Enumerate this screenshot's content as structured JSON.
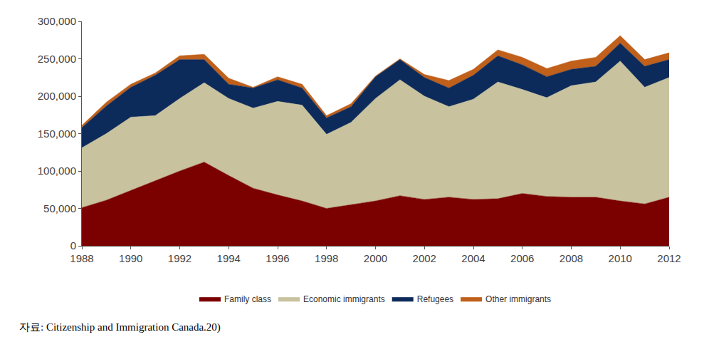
{
  "chart_data": {
    "type": "area",
    "stacked": true,
    "grid": false,
    "legend": "bottom",
    "x": [
      1988,
      1989,
      1990,
      1991,
      1992,
      1993,
      1994,
      1995,
      1996,
      1997,
      1998,
      1999,
      2000,
      2001,
      2002,
      2003,
      2004,
      2005,
      2006,
      2007,
      2008,
      2009,
      2010,
      2011,
      2012
    ],
    "xlim": [
      1988,
      2012
    ],
    "xticks": [
      1988,
      1990,
      1992,
      1994,
      1996,
      1998,
      2000,
      2002,
      2004,
      2006,
      2008,
      2010,
      2012
    ],
    "ylim": [
      0,
      300000
    ],
    "yticks": [
      0,
      {
        "value": 50000,
        "label": "50,000"
      },
      {
        "value": 100000,
        "label": "100,000"
      },
      {
        "value": 150000,
        "label": "150,000"
      },
      {
        "value": 200000,
        "label": "200,000"
      },
      {
        "value": 250000,
        "label": "250,000"
      },
      {
        "value": 300000,
        "label": "300,000"
      }
    ],
    "series": [
      {
        "name": "Family class",
        "color": "#7b0000",
        "values": [
          51000,
          61000,
          74000,
          87000,
          100000,
          112000,
          94000,
          77000,
          68000,
          60000,
          50000,
          55000,
          60000,
          67000,
          62000,
          65000,
          62000,
          63000,
          70000,
          66000,
          65000,
          65000,
          60000,
          56000,
          65000
        ]
      },
      {
        "name": "Economic immigrants",
        "color": "#c8c29e",
        "values": [
          80000,
          89000,
          98000,
          87000,
          97000,
          106000,
          103000,
          107000,
          125000,
          128000,
          99000,
          110000,
          137000,
          155000,
          138000,
          121000,
          134000,
          156000,
          139000,
          132000,
          149000,
          154000,
          187000,
          156000,
          160000
        ]
      },
      {
        "name": "Refugees",
        "color": "#0d2b5a",
        "values": [
          27000,
          37000,
          40000,
          54000,
          52000,
          31000,
          19000,
          27000,
          29000,
          23000,
          22000,
          21000,
          29000,
          27000,
          25000,
          25000,
          32000,
          35000,
          33000,
          28000,
          22000,
          21000,
          24000,
          28000,
          24000
        ]
      },
      {
        "name": "Other immigrants",
        "color": "#c0601a",
        "values": [
          3000,
          5000,
          4000,
          3000,
          5000,
          7000,
          8000,
          1000,
          4000,
          5000,
          3000,
          4000,
          1000,
          1000,
          4000,
          10000,
          8000,
          8000,
          10000,
          11000,
          11000,
          12000,
          10000,
          9000,
          9000
        ]
      }
    ],
    "annotations": [
      "자료: Citizenship and Immigration Canada.20)"
    ]
  }
}
